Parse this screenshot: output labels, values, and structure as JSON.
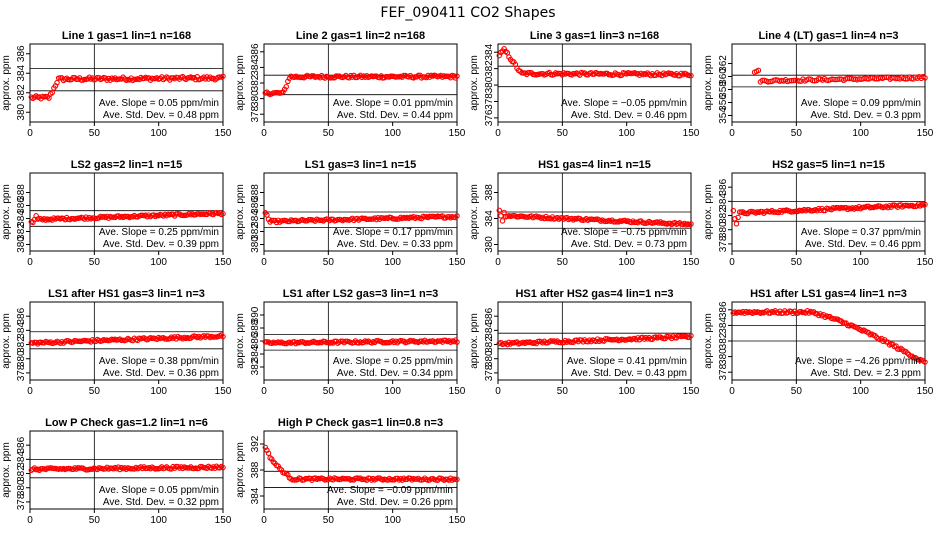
{
  "figure_title": "FEF_090411  CO2 Shapes",
  "chart_data": [
    {
      "type": "scatter",
      "title": "Line 1 gas=1 lin=1 n=168",
      "ylabel": "approx. ppm",
      "xlim": [
        0,
        150
      ],
      "xticks": [
        0,
        50,
        100,
        150
      ],
      "ylim": [
        379,
        387
      ],
      "yticks": [
        380,
        382,
        384,
        386
      ],
      "hlines": [
        384.5,
        382.2
      ],
      "vline": 50,
      "slope_text": "Ave. Slope = 0.05 ppm/min",
      "std_text": "Ave. Std. Dev. = 0.48 ppm",
      "shape": {
        "kind": "step",
        "levels": [
          381.5,
          383.4
        ],
        "t1": 15,
        "t2": 22,
        "drift": 0.05
      },
      "n_points": 120
    },
    {
      "type": "scatter",
      "title": "Line 2 gas=1 lin=2 n=168",
      "ylabel": "approx. ppm",
      "xlim": [
        0,
        150
      ],
      "xticks": [
        0,
        50,
        100,
        150
      ],
      "ylim": [
        377,
        387
      ],
      "yticks": [
        378,
        380,
        382,
        384,
        386
      ],
      "hlines": [
        383.0,
        380.5
      ],
      "vline": 50,
      "slope_text": "Ave. Slope = 0.01 ppm/min",
      "std_text": "Ave. Std. Dev. = 0.44 ppm",
      "shape": {
        "kind": "step",
        "levels": [
          380.7,
          382.8
        ],
        "t1": 15,
        "t2": 20,
        "drift": 0.01
      },
      "n_points": 120
    },
    {
      "type": "scatter",
      "title": "Line 3 gas=1 lin=3 n=168",
      "ylabel": "approx. ppm",
      "xlim": [
        0,
        150
      ],
      "xticks": [
        0,
        50,
        100,
        150
      ],
      "ylim": [
        375.5,
        385
      ],
      "yticks": [
        376,
        378,
        380,
        382,
        384
      ],
      "hlines": [
        382.3,
        379.8
      ],
      "vline": 50,
      "slope_text": "Ave. Slope = −0.05 ppm/min",
      "std_text": "Ave. Std. Dev. = 0.46 ppm",
      "shape": {
        "kind": "peakdecay",
        "start": 383.5,
        "peak": 384.3,
        "base": 381.4,
        "t_peak": 5,
        "t_end": 18,
        "drift": -0.05
      },
      "n_points": 120
    },
    {
      "type": "scatter",
      "title": "Line 4 (LT) gas=1 lin=4 n=3",
      "ylabel": "approx. ppm",
      "xlim": [
        0,
        150
      ],
      "xticks": [
        0,
        50,
        100,
        150
      ],
      "ylim": [
        353,
        365
      ],
      "yticks": [
        354,
        356,
        358,
        360,
        362
      ],
      "hlines": [
        360.2,
        358.4
      ],
      "vline": 50,
      "slope_text": "Ave. Slope = 0.09 ppm/min",
      "std_text": "Ave. Std. Dev. = 0.3 ppm",
      "shape": {
        "kind": "late",
        "start": 360.8,
        "base": 359.3,
        "t0": 17,
        "drift": 0.004
      },
      "n_points": 100
    },
    {
      "type": "scatter",
      "title": "LS2 gas=2 lin=1 n=15",
      "ylabel": "approx. ppm",
      "xlim": [
        0,
        150
      ],
      "xticks": [
        0,
        50,
        100,
        150
      ],
      "ylim": [
        379,
        391
      ],
      "yticks": [
        380,
        382,
        384,
        386,
        388
      ],
      "hlines": [
        385.2,
        382.8
      ],
      "vline": 50,
      "slope_text": "Ave. Slope = 0.25 ppm/min",
      "std_text": "Ave. Std. Dev. = 0.39 ppm",
      "shape": {
        "kind": "noisystart",
        "base": 383.8,
        "end": 384.8,
        "spread": 1.5
      },
      "n_points": 120
    },
    {
      "type": "scatter",
      "title": "LS1 gas=3 lin=1 n=15",
      "ylabel": "approx. ppm",
      "xlim": [
        0,
        150
      ],
      "xticks": [
        0,
        50,
        100,
        150
      ],
      "ylim": [
        379,
        391
      ],
      "yticks": [
        380,
        382,
        384,
        386,
        388
      ],
      "hlines": [
        385.0,
        382.6
      ],
      "vline": 50,
      "slope_text": "Ave. Slope = 0.17 ppm/min",
      "std_text": "Ave. Std. Dev. = 0.33 ppm",
      "shape": {
        "kind": "noisystart",
        "base": 383.5,
        "end": 384.3,
        "spread": 1.4
      },
      "n_points": 120
    },
    {
      "type": "scatter",
      "title": "HS1 gas=4 lin=1 n=15",
      "ylabel": "approx. ppm",
      "xlim": [
        0,
        150
      ],
      "xticks": [
        0,
        50,
        100,
        150
      ],
      "ylim": [
        379,
        391
      ],
      "yticks": [
        380,
        384,
        388
      ],
      "hlines": [
        385.0,
        382.5
      ],
      "vline": 50,
      "slope_text": "Ave. Slope = −0.75 ppm/min",
      "std_text": "Ave. Std. Dev. = 0.73 ppm",
      "shape": {
        "kind": "noisystart",
        "base": 384.5,
        "end": 383.1,
        "spread": 1.2
      },
      "n_points": 120
    },
    {
      "type": "scatter",
      "title": "HS2 gas=5 lin=1 n=15",
      "ylabel": "approx. ppm",
      "xlim": [
        0,
        150
      ],
      "xticks": [
        0,
        50,
        100,
        150
      ],
      "ylim": [
        377,
        388
      ],
      "yticks": [
        378,
        380,
        382,
        384,
        386
      ],
      "hlines": [
        384.0,
        381.2
      ],
      "vline": 50,
      "slope_text": "Ave. Slope = 0.37 ppm/min",
      "std_text": "Ave. Std. Dev. = 0.46 ppm",
      "shape": {
        "kind": "noisystart",
        "base": 382.3,
        "end": 383.5,
        "spread": 1.5
      },
      "n_points": 120
    },
    {
      "type": "scatter",
      "title": "LS1 after HS1 gas=3 lin=1 n=3",
      "ylabel": "approx. ppm",
      "xlim": [
        0,
        150
      ],
      "xticks": [
        0,
        50,
        100,
        150
      ],
      "ylim": [
        377,
        388
      ],
      "yticks": [
        378,
        380,
        382,
        384,
        386
      ],
      "hlines": [
        383.8,
        381.4
      ],
      "vline": 50,
      "slope_text": "Ave. Slope = 0.38 ppm/min",
      "std_text": "Ave. Std. Dev. = 0.36 ppm",
      "shape": {
        "kind": "linear",
        "start": 382.2,
        "end": 383.2
      },
      "n_points": 120
    },
    {
      "type": "scatter",
      "title": "LS1 after LS2 gas=3 lin=1 n=3",
      "ylabel": "approx. ppm",
      "xlim": [
        0,
        150
      ],
      "xticks": [
        0,
        50,
        100,
        150
      ],
      "ylim": [
        380,
        392
      ],
      "yticks": [
        382,
        384,
        386,
        388,
        390
      ],
      "hlines": [
        387.0,
        384.6
      ],
      "vline": 50,
      "slope_text": "Ave. Slope = 0.25 ppm/min",
      "std_text": "Ave. Std. Dev. = 0.34 ppm",
      "shape": {
        "kind": "linear",
        "start": 385.7,
        "end": 386.0
      },
      "n_points": 120
    },
    {
      "type": "scatter",
      "title": "HS1 after HS2 gas=4 lin=1 n=3",
      "ylabel": "approx. ppm",
      "xlim": [
        0,
        150
      ],
      "xticks": [
        0,
        50,
        100,
        150
      ],
      "ylim": [
        377,
        388
      ],
      "yticks": [
        378,
        380,
        382,
        384,
        386
      ],
      "hlines": [
        383.6,
        381.4
      ],
      "vline": 50,
      "slope_text": "Ave. Slope = 0.41 ppm/min",
      "std_text": "Ave. Std. Dev. = 0.43 ppm",
      "shape": {
        "kind": "linear",
        "start": 382.1,
        "end": 383.1
      },
      "n_points": 120
    },
    {
      "type": "scatter",
      "title": "HS1 after LS1 gas=4 lin=1 n=3",
      "ylabel": "approx. ppm",
      "xlim": [
        0,
        150
      ],
      "xticks": [
        0,
        50,
        100,
        150
      ],
      "ylim": [
        377,
        387
      ],
      "yticks": [
        378,
        380,
        382,
        384,
        386
      ],
      "hlines": [
        384.0,
        382.0
      ],
      "vline": 50,
      "slope_text": "Ave. Slope = −4.26 ppm/min",
      "std_text": "Ave. Std. Dev. = 2.3 ppm",
      "shape": {
        "kind": "drop",
        "start": 385.7,
        "flat_end": 60,
        "end": 379.2
      },
      "n_points": 120
    },
    {
      "type": "scatter",
      "title": "Low P Check gas=1.2 lin=1 n=6",
      "ylabel": "approx. ppm",
      "xlim": [
        0,
        150
      ],
      "xticks": [
        0,
        50,
        100,
        150
      ],
      "ylim": [
        377,
        388
      ],
      "yticks": [
        378,
        380,
        382,
        384,
        386
      ],
      "hlines": [
        384.0,
        381.4
      ],
      "vline": 50,
      "slope_text": "Ave. Slope = 0.05 ppm/min",
      "std_text": "Ave. Std. Dev. = 0.32 ppm",
      "shape": {
        "kind": "linear",
        "start": 382.6,
        "end": 382.9
      },
      "n_points": 120
    },
    {
      "type": "scatter",
      "title": "High P Check gas=1 lin=0.8 n=3",
      "ylabel": "approx. ppm",
      "xlim": [
        0,
        150
      ],
      "xticks": [
        0,
        50,
        100,
        150
      ],
      "ylim": [
        382,
        394
      ],
      "yticks": [
        384,
        388,
        392
      ],
      "hlines": [
        387.8,
        385.3
      ],
      "vline": 50,
      "slope_text": "Ave. Slope = −0.09 ppm/min",
      "std_text": "Ave. Std. Dev. = 0.26 ppm",
      "shape": {
        "kind": "highstart",
        "start": 393.0,
        "base": 386.6,
        "t_end": 22
      },
      "n_points": 120
    }
  ]
}
